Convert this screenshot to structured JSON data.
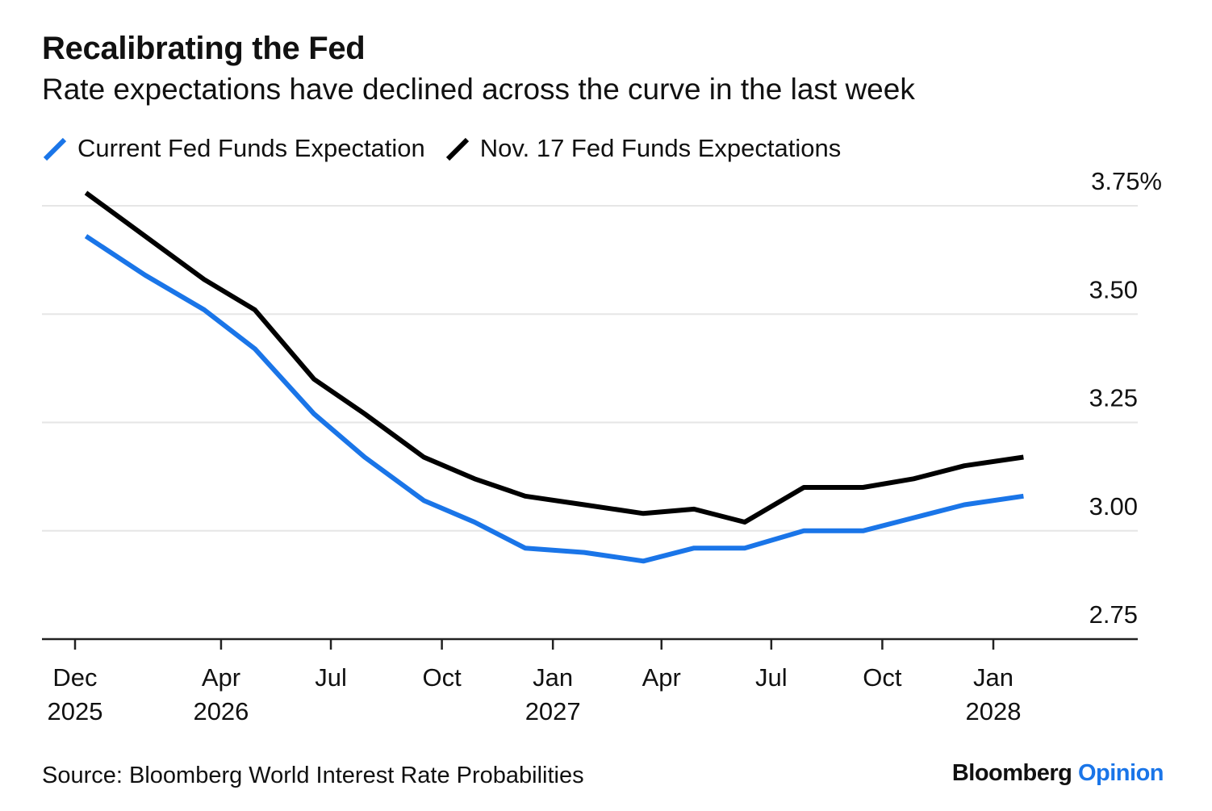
{
  "header": {
    "title": "Recalibrating the Fed",
    "subtitle": "Rate expectations have declined across the curve in the last week"
  },
  "footer": {
    "source": "Source: Bloomberg World Interest Rate Probabilities",
    "brand": "Bloomberg",
    "brand_suffix": "Opinion"
  },
  "colors": {
    "current": "#1a75e8",
    "previous": "#000000",
    "brand_accent": "#1a75e8",
    "grid": "#e6e6e6"
  },
  "chart_data": {
    "type": "line",
    "title": "Recalibrating the Fed",
    "subtitle": "Rate expectations have declined across the curve in the last week",
    "xlabel": "",
    "ylabel": "",
    "ylim": [
      2.75,
      3.75
    ],
    "y_ticks": [
      {
        "value": 3.75,
        "label": "3.75%"
      },
      {
        "value": 3.5,
        "label": "3.50"
      },
      {
        "value": 3.25,
        "label": "3.25"
      },
      {
        "value": 3.0,
        "label": "3.00"
      },
      {
        "value": 2.75,
        "label": "2.75"
      }
    ],
    "x_ticks": [
      {
        "date": "2025-12",
        "line1": "Dec",
        "line2": "2025"
      },
      {
        "date": "2026-04",
        "line1": "Apr",
        "line2": "2026"
      },
      {
        "date": "2026-07",
        "line1": "Jul",
        "line2": ""
      },
      {
        "date": "2026-10",
        "line1": "Oct",
        "line2": ""
      },
      {
        "date": "2027-01",
        "line1": "Jan",
        "line2": "2027"
      },
      {
        "date": "2027-04",
        "line1": "Apr",
        "line2": ""
      },
      {
        "date": "2027-07",
        "line1": "Jul",
        "line2": ""
      },
      {
        "date": "2027-10",
        "line1": "Oct",
        "line2": ""
      },
      {
        "date": "2028-01",
        "line1": "Jan",
        "line2": "2028"
      }
    ],
    "grid": true,
    "legend_position": "top-left",
    "series": [
      {
        "name": "Current Fed Funds Expectation",
        "color": "#1a75e8",
        "points": [
          {
            "date": "2025-12-10",
            "value": 3.68
          },
          {
            "date": "2026-01-28",
            "value": 3.59
          },
          {
            "date": "2026-03-18",
            "value": 3.51
          },
          {
            "date": "2026-04-29",
            "value": 3.42
          },
          {
            "date": "2026-06-17",
            "value": 3.27
          },
          {
            "date": "2026-07-29",
            "value": 3.17
          },
          {
            "date": "2026-09-16",
            "value": 3.07
          },
          {
            "date": "2026-10-28",
            "value": 3.02
          },
          {
            "date": "2026-12-09",
            "value": 2.96
          },
          {
            "date": "2027-01-27",
            "value": 2.95
          },
          {
            "date": "2027-03-17",
            "value": 2.93
          },
          {
            "date": "2027-04-28",
            "value": 2.96
          },
          {
            "date": "2027-06-09",
            "value": 2.96
          },
          {
            "date": "2027-07-28",
            "value": 3.0
          },
          {
            "date": "2027-09-15",
            "value": 3.0
          },
          {
            "date": "2027-10-27",
            "value": 3.03
          },
          {
            "date": "2027-12-08",
            "value": 3.06
          },
          {
            "date": "2028-01-26",
            "value": 3.08
          }
        ]
      },
      {
        "name": "Nov. 17 Fed Funds Expectations",
        "color": "#000000",
        "points": [
          {
            "date": "2025-12-10",
            "value": 3.78
          },
          {
            "date": "2026-01-28",
            "value": 3.68
          },
          {
            "date": "2026-03-18",
            "value": 3.58
          },
          {
            "date": "2026-04-29",
            "value": 3.51
          },
          {
            "date": "2026-06-17",
            "value": 3.35
          },
          {
            "date": "2026-07-29",
            "value": 3.27
          },
          {
            "date": "2026-09-16",
            "value": 3.17
          },
          {
            "date": "2026-10-28",
            "value": 3.12
          },
          {
            "date": "2026-12-09",
            "value": 3.08
          },
          {
            "date": "2027-01-27",
            "value": 3.06
          },
          {
            "date": "2027-03-17",
            "value": 3.04
          },
          {
            "date": "2027-04-28",
            "value": 3.05
          },
          {
            "date": "2027-06-09",
            "value": 3.02
          },
          {
            "date": "2027-07-28",
            "value": 3.1
          },
          {
            "date": "2027-09-15",
            "value": 3.1
          },
          {
            "date": "2027-10-27",
            "value": 3.12
          },
          {
            "date": "2027-12-08",
            "value": 3.15
          },
          {
            "date": "2028-01-26",
            "value": 3.17
          }
        ]
      }
    ]
  }
}
